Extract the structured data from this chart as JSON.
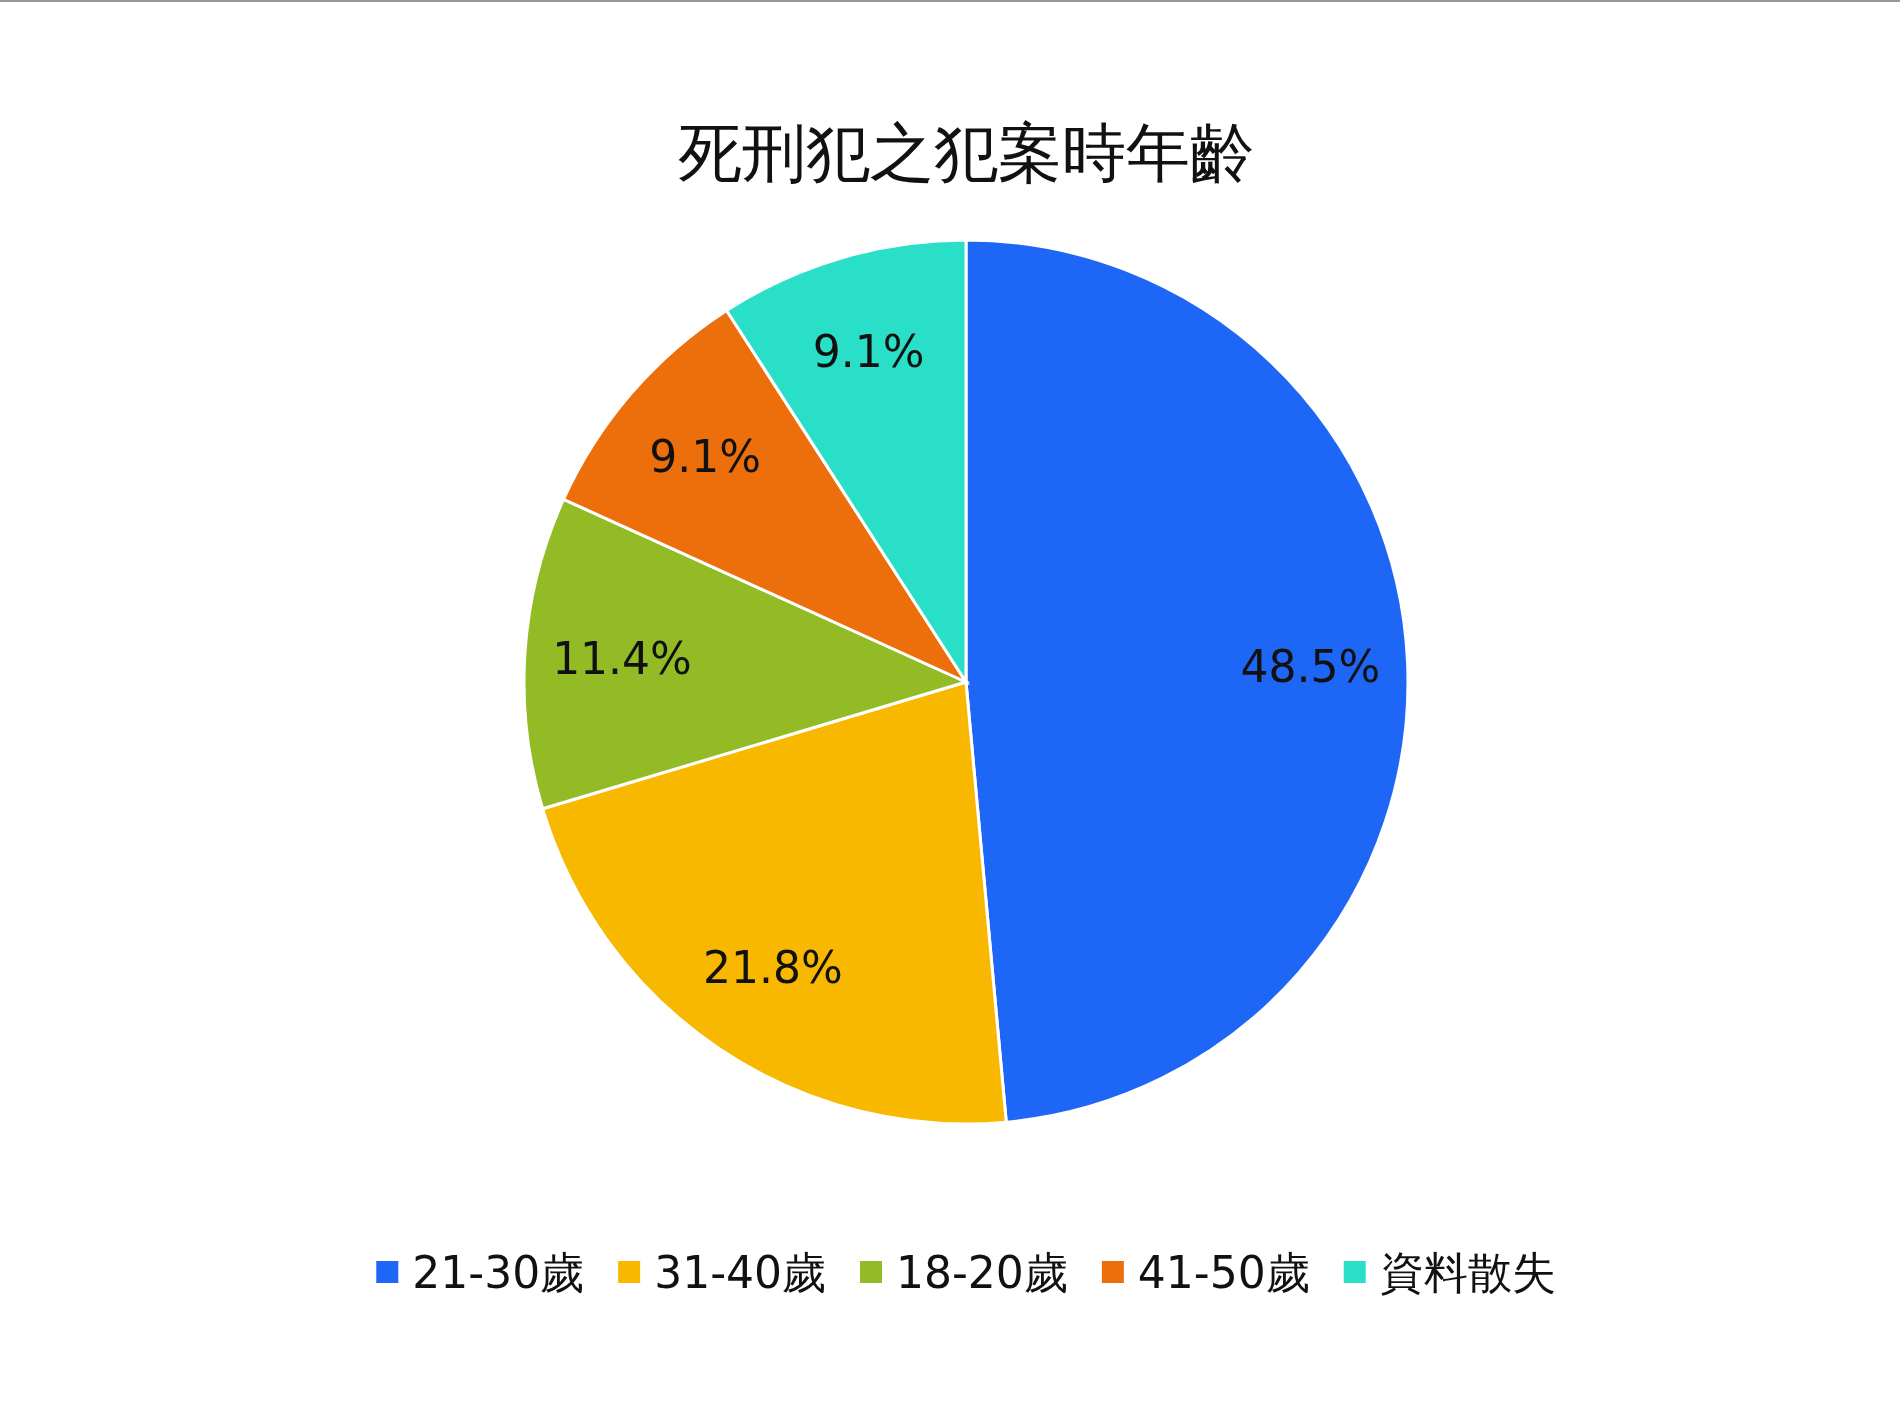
{
  "chart_data": {
    "type": "pie",
    "title": "死刑犯之犯案時年齡",
    "categories": [
      "21-30歲",
      "31-40歲",
      "18-20歲",
      "41-50歲",
      "資料散失"
    ],
    "values": [
      48.5,
      21.8,
      11.4,
      9.1,
      9.1
    ],
    "colors": [
      "#1e66f5",
      "#f9b800",
      "#92bb25",
      "#ec6f0b",
      "#2adfc8"
    ],
    "value_labels": [
      "48.5%",
      "21.8%",
      "11.4%",
      "9.1%",
      "9.1%"
    ],
    "legend": "bottom"
  }
}
